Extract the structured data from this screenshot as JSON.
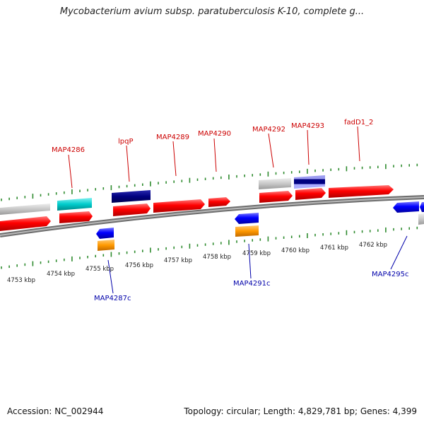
{
  "title": "Mycobacterium avium subsp. paratuberculosis K-10, complete g...",
  "footer": {
    "accession": "Accession: NC_002944",
    "summary": "Topology: circular; Length: 4,829,781 bp; Genes: 4,399"
  },
  "kbp_labels": [
    "4753 kbp",
    "4754 kbp",
    "4755 kbp",
    "4756 kbp",
    "4757 kbp",
    "4758 kbp",
    "4759 kbp",
    "4760 kbp",
    "4761 kbp",
    "4762 kbp"
  ],
  "gene_labels_top": [
    "MAP4286",
    "lpqP",
    "MAP4289",
    "MAP4290",
    "MAP4292",
    "MAP4293",
    "fadD1_2"
  ],
  "gene_labels_bottom": [
    "MAP4287c",
    "MAP4291c",
    "MAP4295c"
  ],
  "colors": {
    "forward_gene": "#ff0000",
    "reverse_gene": "#0000ff",
    "forward_label": "#cc0000",
    "reverse_label": "#0000aa",
    "cyan_feature": "#00cccc",
    "navy_feature": "#000080",
    "gray_feature": "#c8c8c8",
    "orange_feature": "#ff9900",
    "tick": "#2e8b2e",
    "backbone": "#808080"
  }
}
